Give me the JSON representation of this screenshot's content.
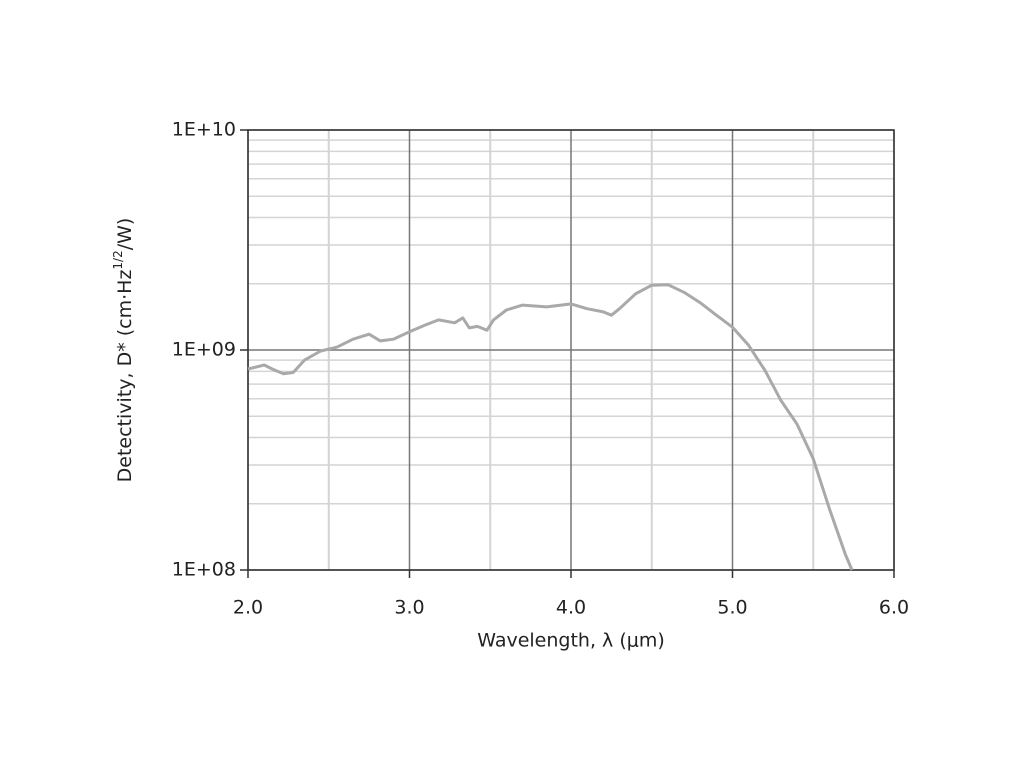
{
  "chart_data": {
    "type": "line",
    "x_label": "Wavelength, λ (μm)",
    "y_label": [
      "Detectivity, D* (cm·Hz",
      "1/2",
      "/W)"
    ],
    "log_y": true,
    "grid": true,
    "xlim": [
      2,
      6
    ],
    "ylim": [
      100000000,
      10000000000
    ],
    "xticks": [
      {
        "value": 2,
        "label": "2.0"
      },
      {
        "value": 3,
        "label": "3.0"
      },
      {
        "value": 4,
        "label": "4.0"
      },
      {
        "value": 5,
        "label": "5.0"
      },
      {
        "value": 6,
        "label": "6.0"
      }
    ],
    "yticks": [
      {
        "value": 100000000,
        "label": "1E+08"
      },
      {
        "value": 1000000000,
        "label": "1E+09"
      },
      {
        "value": 10000000000,
        "label": "1E+10"
      }
    ],
    "x_minor_ticks": [
      2.5,
      3.5,
      4.5,
      5.5
    ],
    "y_minor_ticks": [
      200000000,
      300000000,
      400000000,
      500000000,
      600000000,
      700000000,
      800000000,
      900000000,
      2000000000,
      3000000000,
      4000000000,
      5000000000,
      6000000000,
      7000000000,
      8000000000,
      9000000000
    ],
    "series": [
      {
        "color": "#a9a9a9",
        "x": [
          2.0,
          2.1,
          2.15,
          2.22,
          2.28,
          2.35,
          2.45,
          2.55,
          2.65,
          2.75,
          2.82,
          2.9,
          3.0,
          3.1,
          3.18,
          3.28,
          3.33,
          3.37,
          3.42,
          3.48,
          3.52,
          3.6,
          3.7,
          3.85,
          4.0,
          4.1,
          4.2,
          4.25,
          4.3,
          4.4,
          4.5,
          4.6,
          4.7,
          4.8,
          4.9,
          5.0,
          5.1,
          5.2,
          5.3,
          5.4,
          5.5,
          5.6,
          5.7,
          5.74
        ],
        "values": [
          820000000,
          855000000,
          820000000,
          780000000,
          790000000,
          900000000,
          990000000,
          1030000000,
          1120000000,
          1180000000,
          1100000000,
          1120000000,
          1210000000,
          1300000000,
          1370000000,
          1330000000,
          1400000000,
          1260000000,
          1280000000,
          1230000000,
          1370000000,
          1520000000,
          1600000000,
          1570000000,
          1620000000,
          1540000000,
          1490000000,
          1440000000,
          1540000000,
          1800000000,
          1970000000,
          1980000000,
          1830000000,
          1640000000,
          1440000000,
          1270000000,
          1050000000,
          810000000,
          590000000,
          460000000,
          320000000,
          190000000,
          117000000,
          100000000
        ]
      }
    ]
  }
}
